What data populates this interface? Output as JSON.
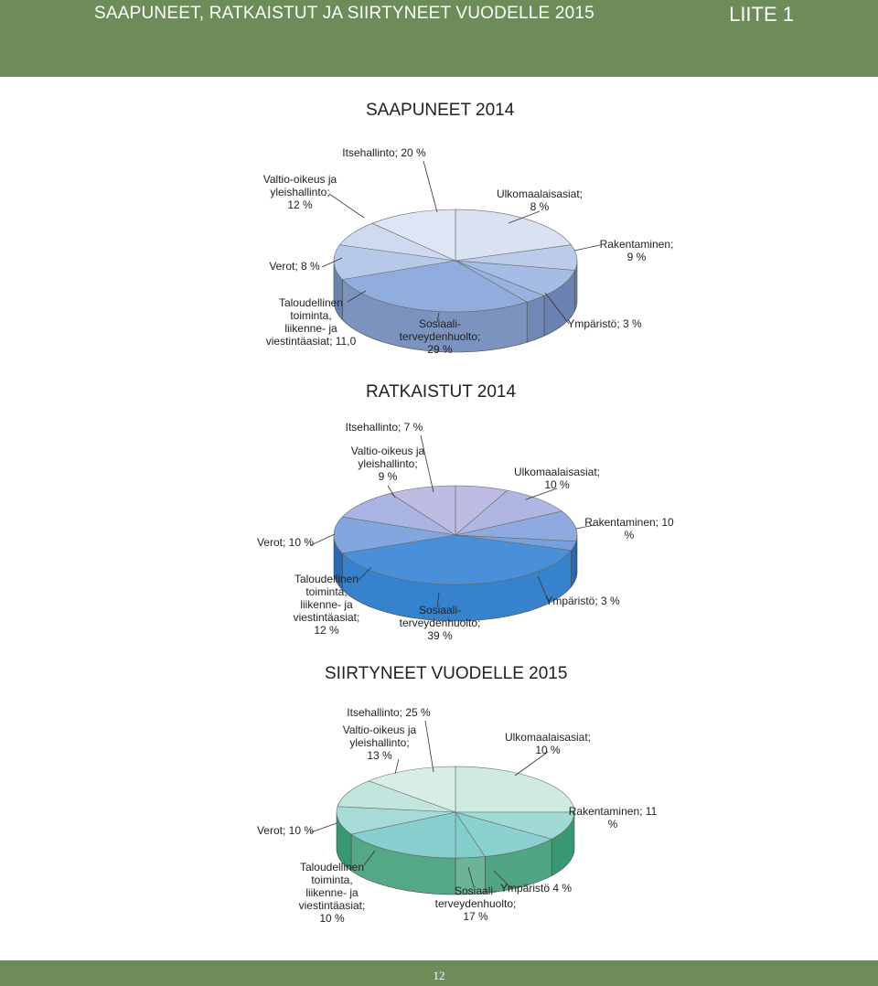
{
  "header": {
    "title": "SAAPUNEET, RATKAISTUT JA SIIRTYNEET VUODELLE 2015",
    "appendix": "LIITE 1"
  },
  "footer": {
    "page_number": "12"
  },
  "chart_data": [
    {
      "type": "pie",
      "title": "SAAPUNEET 2014",
      "slices": [
        {
          "label": [
            "Itsehallinto; 20 %"
          ],
          "value": 20
        },
        {
          "label": [
            "Ulkomaalaisasiat;",
            "8 %"
          ],
          "value": 8
        },
        {
          "label": [
            "Rakentaminen;",
            "9 %"
          ],
          "value": 9
        },
        {
          "label": [
            "Ympäristö; 3 %"
          ],
          "value": 3
        },
        {
          "label": [
            "Sosiaali-",
            "terveydenhuolto;",
            "29 %"
          ],
          "value": 29
        },
        {
          "label": [
            "Taloudellinen",
            "toiminta,",
            "liikenne- ja",
            "viestintäasiat; 11,0"
          ],
          "value": 11
        },
        {
          "label": [
            "Verot; 8 %"
          ],
          "value": 8
        },
        {
          "label": [
            "Valtio-oikeus ja",
            "yleishallinto;",
            "12 %"
          ],
          "value": 12
        }
      ],
      "colors": {
        "top_light": "#f3f5fb",
        "top_dark": "#7d9fd8",
        "side": "#8fa6cf",
        "side_dark": "#5f77a8"
      }
    },
    {
      "type": "pie",
      "title": "RATKAISTUT 2014",
      "slices": [
        {
          "label": [
            "Itsehallinto; 7 %"
          ],
          "value": 7
        },
        {
          "label": [
            "Ulkomaalaisasiat;",
            "10 %"
          ],
          "value": 10
        },
        {
          "label": [
            "Rakentaminen; 10",
            "%"
          ],
          "value": 10
        },
        {
          "label": [
            "Ympäristö; 3 %"
          ],
          "value": 3
        },
        {
          "label": [
            "Sosiaali-",
            "terveydenhuolto;",
            "39 %"
          ],
          "value": 39
        },
        {
          "label": [
            "Taloudellinen",
            "toiminta,",
            "liikenne- ja",
            "viestintäasiat;",
            "12 %"
          ],
          "value": 12
        },
        {
          "label": [
            "Verot; 10 %"
          ],
          "value": 10
        },
        {
          "label": [
            "Valtio-oikeus ja",
            "yleishallinto;",
            "9 %"
          ],
          "value": 9
        }
      ],
      "colors": {
        "top_light": "#d9c6e6",
        "top_dark": "#2f86d6",
        "side": "#3f8fd8",
        "side_dark": "#1f5fae"
      }
    },
    {
      "type": "pie",
      "title": "SIIRTYNEET VUODELLE 2015",
      "slices": [
        {
          "label": [
            "Itsehallinto; 25 %"
          ],
          "value": 25
        },
        {
          "label": [
            "Ulkomaalaisasiat;",
            "10 %"
          ],
          "value": 10
        },
        {
          "label": [
            "Rakentaminen; 11",
            "%"
          ],
          "value": 11
        },
        {
          "label": [
            "Ympäristö 4 %"
          ],
          "value": 4
        },
        {
          "label": [
            "Sosiaali-",
            "terveydenhuolto;",
            "17 %"
          ],
          "value": 17
        },
        {
          "label": [
            "Taloudellinen",
            "toiminta,",
            "liikenne- ja",
            "viestintäasiat;",
            "10 %"
          ],
          "value": 10
        },
        {
          "label": [
            "Verot; 10 %"
          ],
          "value": 10
        },
        {
          "label": [
            "Valtio-oikeus ja",
            "yleishallinto;",
            "13 %"
          ],
          "value": 13
        }
      ],
      "colors": {
        "top_light": "#eef6ea",
        "top_dark": "#6fc7c8",
        "side": "#8fc9b0",
        "side_dark": "#1f8a60"
      }
    }
  ]
}
